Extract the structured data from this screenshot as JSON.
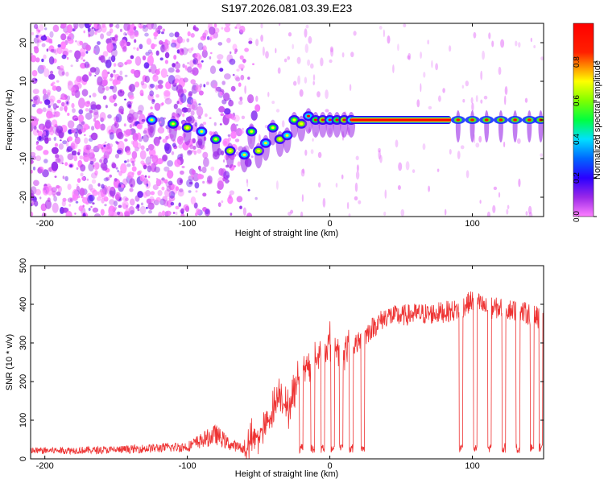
{
  "title": "S197.2026.081.03.39.E23",
  "chart_data": [
    {
      "type": "heatmap",
      "xlabel": "Height of straight line (km)",
      "ylabel": "Frequency (Hz)",
      "xlim": [
        -210,
        150
      ],
      "ylim": [
        -25,
        25
      ],
      "xticks": [
        -200,
        -100,
        0,
        100
      ],
      "yticks": [
        -20,
        -10,
        0,
        10,
        20
      ],
      "colorbar": {
        "label": "Normalized spectral amplitude",
        "range": [
          0,
          1
        ],
        "ticks": [
          "0.0",
          "0.2",
          "0.4",
          "0.6",
          "0.8"
        ],
        "tick_values": [
          0,
          0.2,
          0.4,
          0.6,
          0.8
        ],
        "stops": [
          {
            "v": 0.0,
            "color": "#ff80ff"
          },
          {
            "v": 0.1,
            "color": "#9a28e8"
          },
          {
            "v": 0.2,
            "color": "#2a00ff"
          },
          {
            "v": 0.3,
            "color": "#0066ff"
          },
          {
            "v": 0.4,
            "color": "#00e0ff"
          },
          {
            "v": 0.5,
            "color": "#00ff40"
          },
          {
            "v": 0.6,
            "color": "#80ff00"
          },
          {
            "v": 0.7,
            "color": "#ffff00"
          },
          {
            "v": 0.85,
            "color": "#ff2000"
          },
          {
            "v": 1.0,
            "color": "#ff0000"
          }
        ]
      },
      "ridge": {
        "x": [
          -125,
          -110,
          -100,
          -90,
          -80,
          -70,
          -60,
          -55,
          -50,
          -45,
          -40,
          -35,
          -30,
          -25,
          -20,
          -15,
          -10,
          -5,
          0,
          5,
          10,
          15
        ],
        "y": [
          0,
          -1,
          -2,
          -3,
          -5,
          -8,
          -9,
          -3,
          -8,
          -6,
          -2,
          -5,
          -4,
          0,
          -1,
          1,
          0,
          0,
          0,
          0,
          0,
          0
        ]
      },
      "carrier": {
        "x_start": 15,
        "x_end": 85,
        "y": 0,
        "amplitude": 1.0
      },
      "tone_bursts_x": [
        90,
        100,
        110,
        120,
        130,
        140,
        148
      ],
      "noise_region_x": [
        -210,
        -60
      ]
    },
    {
      "type": "line",
      "xlabel": "Height of straight line (km)",
      "ylabel": "SNR (10 * v/v)",
      "xlim": [
        -210,
        150
      ],
      "ylim": [
        0,
        500
      ],
      "xticks": [
        -200,
        -100,
        0,
        100
      ],
      "yticks": [
        0,
        100,
        200,
        300,
        400,
        500
      ],
      "color": "#ee3333",
      "series_description_points": {
        "x": [
          -210,
          -150,
          -100,
          -80,
          -70,
          -60,
          -45,
          -35,
          -30,
          -20,
          -10,
          0,
          10,
          20,
          30,
          40,
          50,
          60,
          70,
          80,
          90,
          100,
          110,
          120,
          130,
          140,
          150
        ],
        "y": [
          20,
          22,
          30,
          60,
          35,
          25,
          80,
          180,
          120,
          230,
          260,
          300,
          280,
          300,
          340,
          370,
          370,
          375,
          375,
          380,
          385,
          410,
          390,
          390,
          385,
          375,
          360
        ]
      },
      "dropouts_x": [
        -20,
        -12,
        -5,
        2,
        8,
        15,
        23,
        92,
        102,
        112,
        122,
        132,
        142,
        148
      ]
    }
  ]
}
